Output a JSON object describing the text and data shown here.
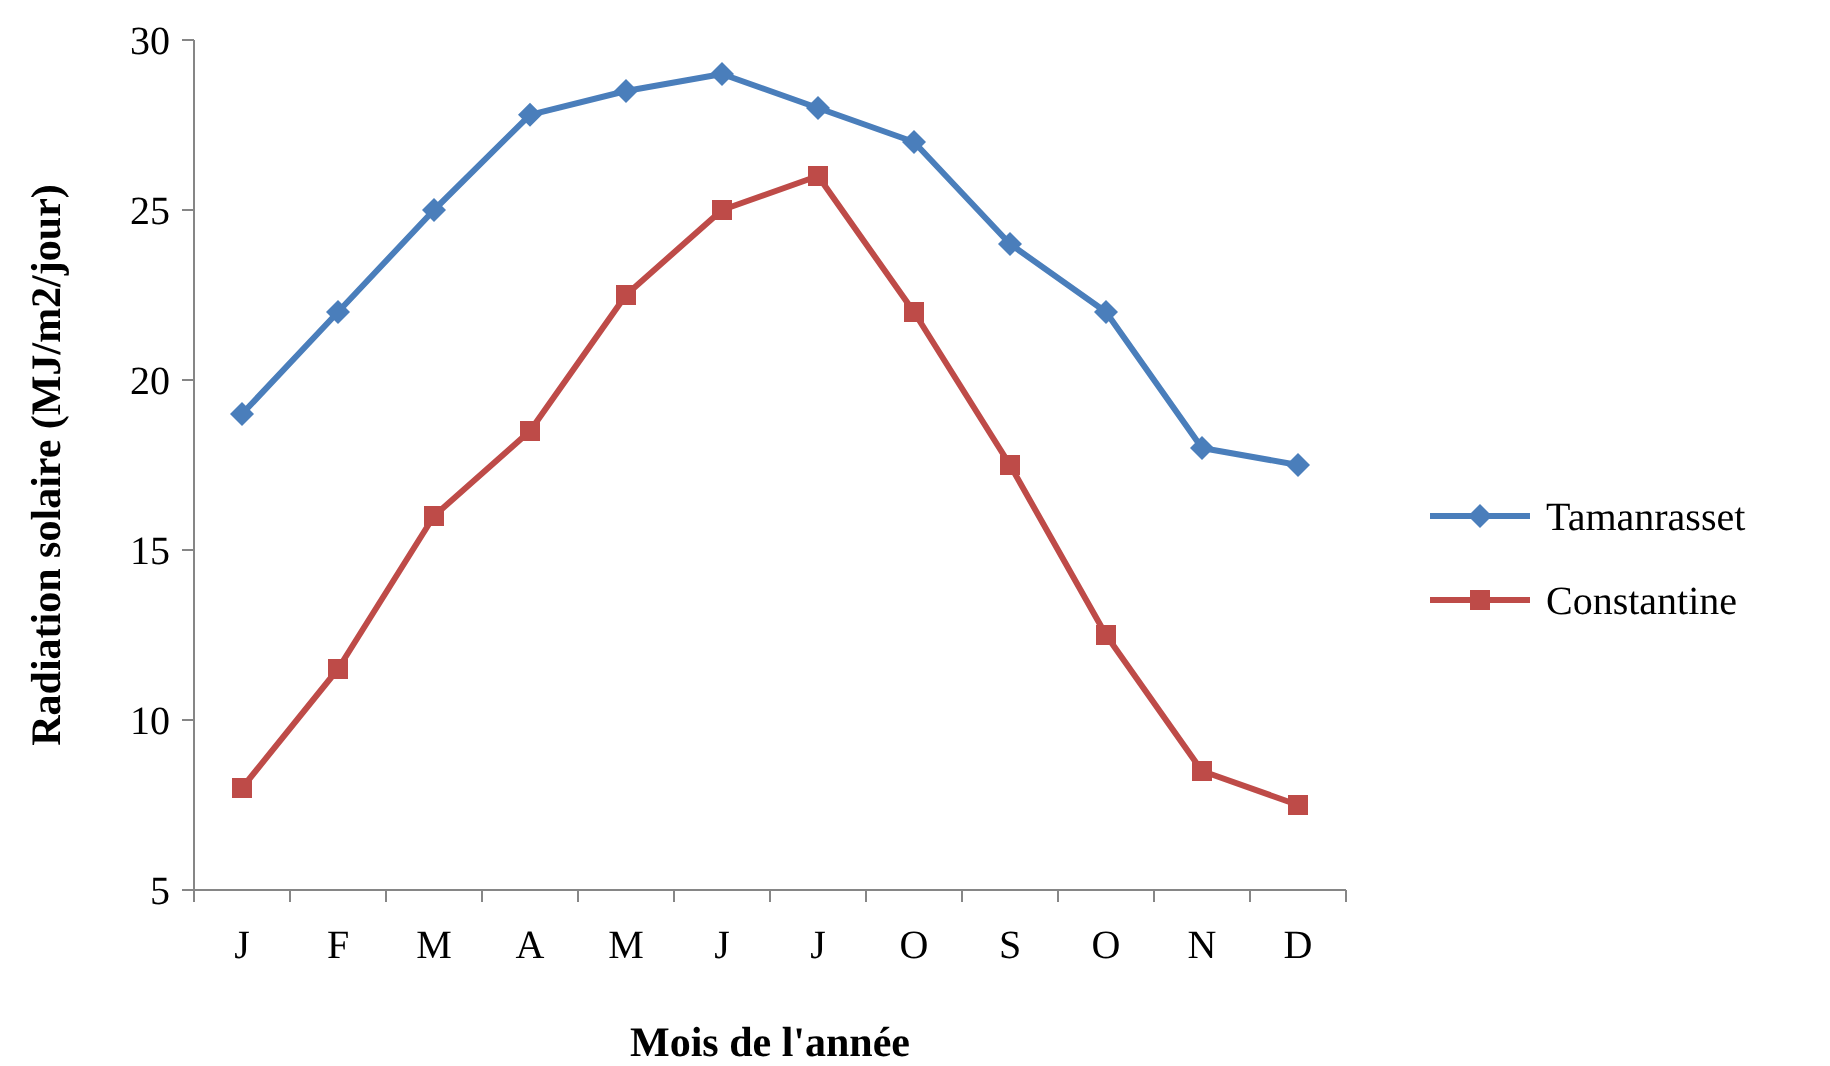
{
  "chart_data": {
    "type": "line",
    "xlabel": "Mois de l'année",
    "ylabel": "Radiation solaire (MJ/m2/jour)",
    "categories": [
      "J",
      "F",
      "M",
      "A",
      "M",
      "J",
      "J",
      "O",
      "S",
      "O",
      "N",
      "D"
    ],
    "ylim": [
      5,
      30
    ],
    "yticks": [
      5,
      10,
      15,
      20,
      25,
      30
    ],
    "grid": false,
    "legend": "right",
    "series": [
      {
        "name": "Tamanrasset",
        "color": "#4a7ebb",
        "marker": "diamond",
        "values": [
          19,
          22,
          25,
          27.8,
          28.5,
          29,
          28,
          27,
          24,
          22,
          18,
          17.5
        ]
      },
      {
        "name": "Constantine",
        "color": "#be4b48",
        "marker": "square",
        "values": [
          8,
          11.5,
          16,
          18.5,
          22.5,
          25,
          26,
          22,
          17.5,
          12.5,
          8.5,
          7.5
        ]
      }
    ]
  }
}
